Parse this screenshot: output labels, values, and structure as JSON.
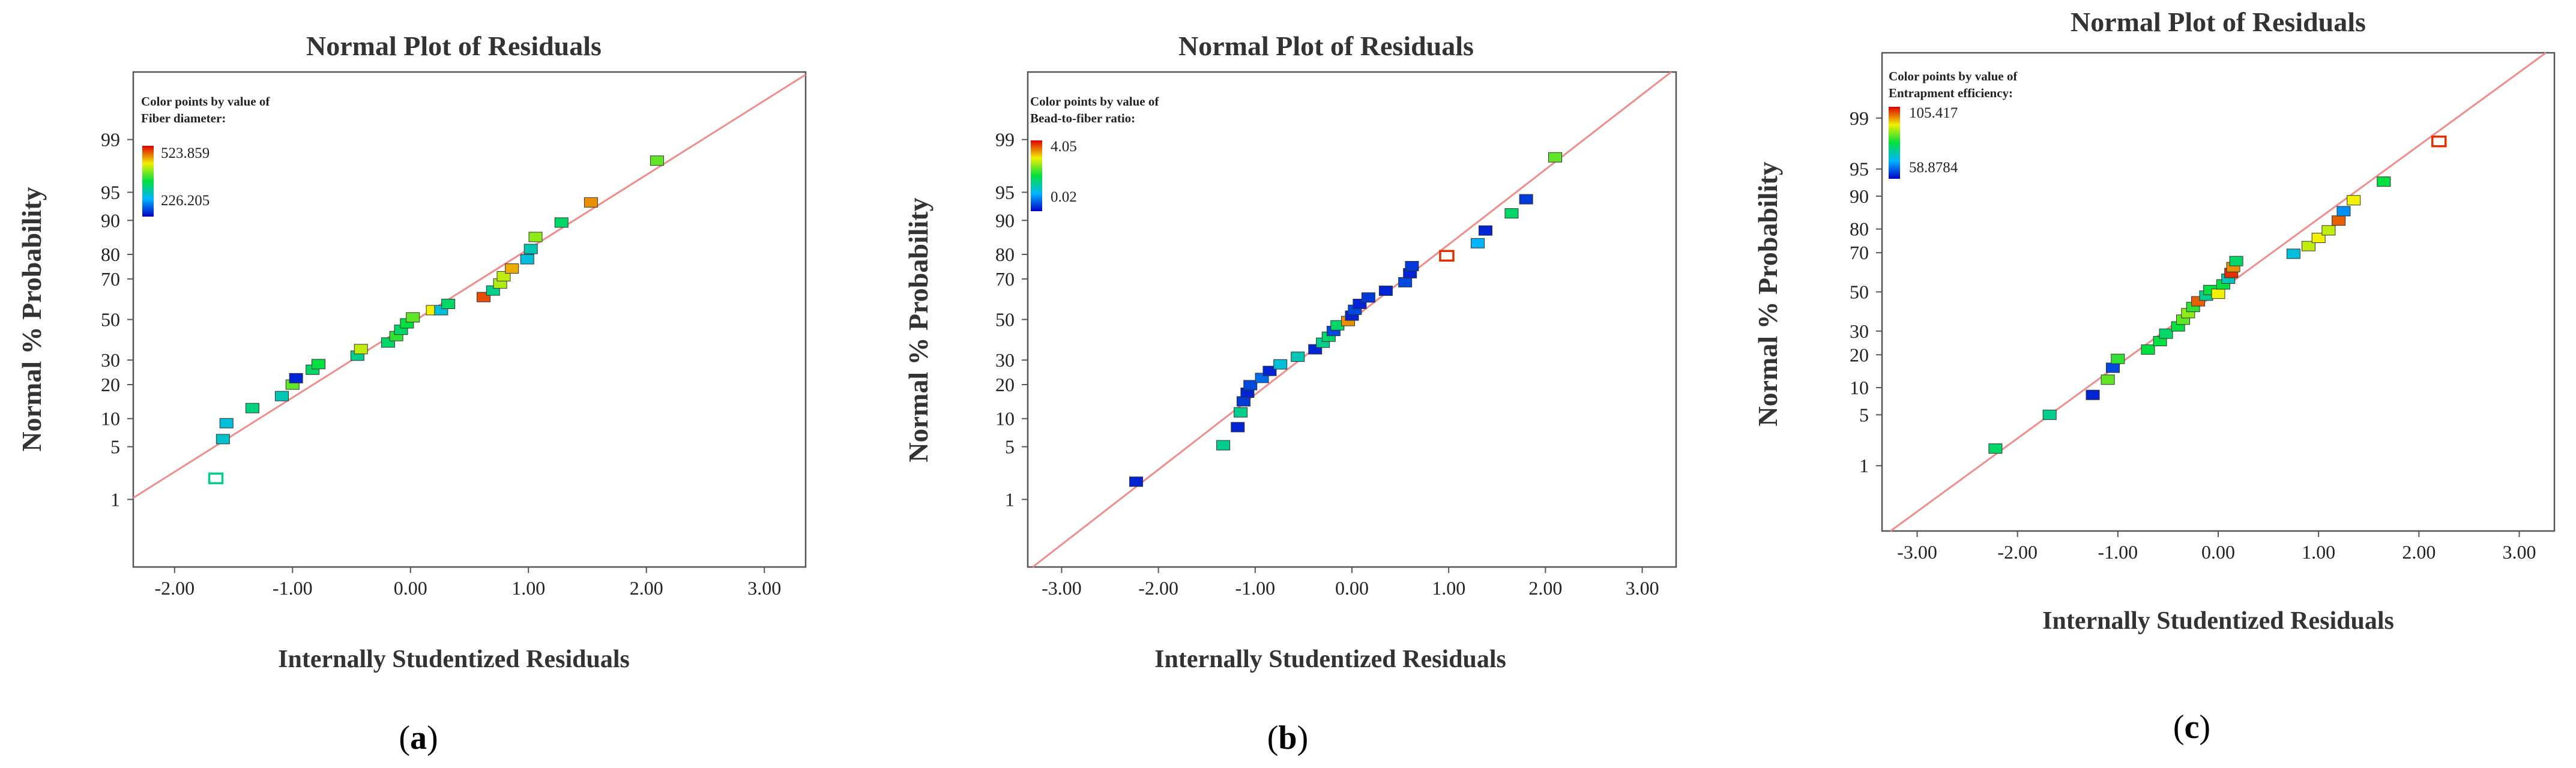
{
  "colors": {
    "fit_line": "#f08c8c",
    "frame": "#555555",
    "scale_high_text": "#aa0000",
    "scale_low_text": "#0000aa"
  },
  "chart_data": [
    {
      "id": "a",
      "type": "scatter",
      "title": "Normal Plot of Residuals",
      "xlabel": "Internally Studentized Residuals",
      "ylabel": "Normal % Probability",
      "panel_label": "a",
      "xlim": [
        -2.35,
        3.35
      ],
      "xticks": [
        "-2.00",
        "-1.00",
        "0.00",
        "1.00",
        "2.00",
        "3.00"
      ],
      "xtick_values": [
        -2,
        -1,
        0,
        1,
        2,
        3
      ],
      "ylim_z": [
        -3.2,
        3.2
      ],
      "yticks": [
        "1",
        "5",
        "10",
        "20",
        "30",
        "50",
        "70",
        "80",
        "90",
        "95",
        "99"
      ],
      "ytick_values": [
        1,
        5,
        10,
        20,
        30,
        50,
        70,
        80,
        90,
        95,
        99
      ],
      "fit_line": {
        "slope": 0.96,
        "intercept": -0.05
      },
      "legend": {
        "line1": "Color points by value of",
        "line2": "Fiber diameter:",
        "max": "523.859",
        "min": "226.205"
      },
      "points": [
        {
          "x": -1.65,
          "p": 2.0,
          "c": 0.4,
          "hollow": true
        },
        {
          "x": -1.59,
          "p": 6.1,
          "c": 0.32
        },
        {
          "x": -1.56,
          "p": 9.0,
          "c": 0.3
        },
        {
          "x": -1.34,
          "p": 12.6,
          "c": 0.42
        },
        {
          "x": -1.09,
          "p": 16.1,
          "c": 0.35
        },
        {
          "x": -1.0,
          "p": 20.0,
          "c": 0.6
        },
        {
          "x": -0.97,
          "p": 22.4,
          "c": 0.05
        },
        {
          "x": -0.83,
          "p": 25.8,
          "c": 0.45
        },
        {
          "x": -0.78,
          "p": 28.2,
          "c": 0.5
        },
        {
          "x": -0.45,
          "p": 32.0,
          "c": 0.4
        },
        {
          "x": -0.42,
          "p": 35.1,
          "c": 0.7
        },
        {
          "x": -0.19,
          "p": 38.3,
          "c": 0.45
        },
        {
          "x": -0.12,
          "p": 41.5,
          "c": 0.55
        },
        {
          "x": -0.08,
          "p": 44.7,
          "c": 0.45
        },
        {
          "x": -0.03,
          "p": 48.0,
          "c": 0.5
        },
        {
          "x": 0.02,
          "p": 51.1,
          "c": 0.6
        },
        {
          "x": 0.19,
          "p": 54.8,
          "c": 0.75
        },
        {
          "x": 0.26,
          "p": 54.8,
          "c": 0.3
        },
        {
          "x": 0.32,
          "p": 58.0,
          "c": 0.45
        },
        {
          "x": 0.62,
          "p": 61.4,
          "c": 0.92
        },
        {
          "x": 0.7,
          "p": 64.6,
          "c": 0.4
        },
        {
          "x": 0.76,
          "p": 67.9,
          "c": 0.68
        },
        {
          "x": 0.79,
          "p": 71.2,
          "c": 0.7
        },
        {
          "x": 0.86,
          "p": 74.5,
          "c": 0.82
        },
        {
          "x": 0.99,
          "p": 78.2,
          "c": 0.3
        },
        {
          "x": 1.02,
          "p": 81.9,
          "c": 0.35
        },
        {
          "x": 1.06,
          "p": 85.7,
          "c": 0.65
        },
        {
          "x": 1.28,
          "p": 89.5,
          "c": 0.45
        },
        {
          "x": 1.53,
          "p": 93.5,
          "c": 0.85
        },
        {
          "x": 2.09,
          "p": 98.0,
          "c": 0.6
        }
      ]
    },
    {
      "id": "b",
      "type": "scatter",
      "title": "Normal Plot of Residuals",
      "xlabel": "Internally Studentized Residuals",
      "ylabel": "Normal % Probability",
      "panel_label": "b",
      "xlim": [
        -3.35,
        3.35
      ],
      "xticks": [
        "-3.00",
        "-2.00",
        "-1.00",
        "0.00",
        "1.00",
        "2.00",
        "3.00"
      ],
      "xtick_values": [
        -3,
        -2,
        -1,
        0,
        1,
        2,
        3
      ],
      "ylim_z": [
        -3.2,
        3.2
      ],
      "yticks": [
        "1",
        "5",
        "10",
        "20",
        "30",
        "50",
        "70",
        "80",
        "90",
        "95",
        "99"
      ],
      "ytick_values": [
        1,
        5,
        10,
        20,
        30,
        50,
        70,
        80,
        90,
        95,
        99
      ],
      "fit_line": {
        "slope": 0.97,
        "intercept": 0.0
      },
      "legend": {
        "line1": "Color points by value of",
        "line2": "Bead-to-fiber ratio:",
        "max": "4.05",
        "min": "0.02"
      },
      "points": [
        {
          "x": -2.23,
          "p": 1.8,
          "c": 0.05
        },
        {
          "x": -1.33,
          "p": 5.2,
          "c": 0.4
        },
        {
          "x": -1.18,
          "p": 8.2,
          "c": 0.05
        },
        {
          "x": -1.15,
          "p": 11.5,
          "c": 0.4
        },
        {
          "x": -1.12,
          "p": 14.5,
          "c": 0.08
        },
        {
          "x": -1.08,
          "p": 17.2,
          "c": 0.05
        },
        {
          "x": -1.05,
          "p": 19.8,
          "c": 0.1
        },
        {
          "x": -0.93,
          "p": 22.5,
          "c": 0.15
        },
        {
          "x": -0.85,
          "p": 25.3,
          "c": 0.05
        },
        {
          "x": -0.74,
          "p": 28.1,
          "c": 0.3
        },
        {
          "x": -0.56,
          "p": 31.5,
          "c": 0.35
        },
        {
          "x": -0.38,
          "p": 35.0,
          "c": 0.05
        },
        {
          "x": -0.3,
          "p": 38.2,
          "c": 0.4
        },
        {
          "x": -0.24,
          "p": 41.2,
          "c": 0.45
        },
        {
          "x": -0.19,
          "p": 44.1,
          "c": 0.1
        },
        {
          "x": -0.15,
          "p": 47.0,
          "c": 0.45
        },
        {
          "x": -0.04,
          "p": 49.2,
          "c": 0.85
        },
        {
          "x": 0.0,
          "p": 52.0,
          "c": 0.05
        },
        {
          "x": 0.03,
          "p": 55.0,
          "c": 0.1
        },
        {
          "x": 0.08,
          "p": 58.0,
          "c": 0.05
        },
        {
          "x": 0.17,
          "p": 61.2,
          "c": 0.08
        },
        {
          "x": 0.35,
          "p": 64.5,
          "c": 0.05
        },
        {
          "x": 0.55,
          "p": 68.5,
          "c": 0.1
        },
        {
          "x": 0.6,
          "p": 72.5,
          "c": 0.05
        },
        {
          "x": 0.62,
          "p": 75.5,
          "c": 0.08
        },
        {
          "x": 0.98,
          "p": 79.5,
          "c": 0.95,
          "hollow": true
        },
        {
          "x": 1.3,
          "p": 83.8,
          "c": 0.25
        },
        {
          "x": 1.38,
          "p": 87.5,
          "c": 0.05
        },
        {
          "x": 1.65,
          "p": 91.5,
          "c": 0.45
        },
        {
          "x": 1.8,
          "p": 94.0,
          "c": 0.08
        },
        {
          "x": 2.1,
          "p": 98.2,
          "c": 0.6
        }
      ]
    },
    {
      "id": "c",
      "type": "scatter",
      "title": "Normal Plot of Residuals",
      "xlabel": "Internally Studentized Residuals",
      "ylabel": "Normal % Probability",
      "panel_label": "c",
      "xlim": [
        -3.35,
        3.35
      ],
      "xticks": [
        "-3.00",
        "-2.00",
        "-1.00",
        "0.00",
        "1.00",
        "2.00",
        "3.00"
      ],
      "xtick_values": [
        -3,
        -2,
        -1,
        0,
        1,
        2,
        3
      ],
      "ylim_z": [
        -3.2,
        3.2
      ],
      "yticks": [
        "1",
        "5",
        "10",
        "20",
        "30",
        "50",
        "70",
        "80",
        "90",
        "95",
        "99"
      ],
      "ytick_values": [
        1,
        5,
        10,
        20,
        30,
        50,
        70,
        80,
        90,
        95,
        99
      ],
      "fit_line": {
        "slope": 0.98,
        "intercept": 0.0
      },
      "legend": {
        "line1": "Color points by value of",
        "line2": "Entrapment efficiency:",
        "max": "105.417",
        "min": "58.8784"
      },
      "points": [
        {
          "x": -2.22,
          "p": 1.8,
          "c": 0.45
        },
        {
          "x": -1.68,
          "p": 5.0,
          "c": 0.4
        },
        {
          "x": -1.25,
          "p": 8.4,
          "c": 0.05
        },
        {
          "x": -1.1,
          "p": 12.0,
          "c": 0.6
        },
        {
          "x": -1.05,
          "p": 15.5,
          "c": 0.1
        },
        {
          "x": -1.0,
          "p": 18.5,
          "c": 0.55
        },
        {
          "x": -0.7,
          "p": 22.0,
          "c": 0.5
        },
        {
          "x": -0.58,
          "p": 25.5,
          "c": 0.5
        },
        {
          "x": -0.52,
          "p": 28.8,
          "c": 0.45
        },
        {
          "x": -0.4,
          "p": 32.2,
          "c": 0.5
        },
        {
          "x": -0.35,
          "p": 35.5,
          "c": 0.6
        },
        {
          "x": -0.3,
          "p": 38.8,
          "c": 0.65
        },
        {
          "x": -0.25,
          "p": 42.0,
          "c": 0.55
        },
        {
          "x": -0.2,
          "p": 45.0,
          "c": 0.9
        },
        {
          "x": -0.12,
          "p": 48.0,
          "c": 0.4
        },
        {
          "x": -0.08,
          "p": 51.0,
          "c": 0.5
        },
        {
          "x": 0.0,
          "p": 49.0,
          "c": 0.75
        },
        {
          "x": 0.05,
          "p": 54.0,
          "c": 0.5
        },
        {
          "x": 0.1,
          "p": 57.0,
          "c": 0.35
        },
        {
          "x": 0.13,
          "p": 60.0,
          "c": 0.95
        },
        {
          "x": 0.15,
          "p": 63.0,
          "c": 0.85
        },
        {
          "x": 0.18,
          "p": 66.0,
          "c": 0.45
        },
        {
          "x": 0.75,
          "p": 69.5,
          "c": 0.3
        },
        {
          "x": 0.9,
          "p": 73.0,
          "c": 0.7
        },
        {
          "x": 1.0,
          "p": 76.5,
          "c": 0.75
        },
        {
          "x": 1.1,
          "p": 79.5,
          "c": 0.7
        },
        {
          "x": 1.2,
          "p": 83.0,
          "c": 0.9
        },
        {
          "x": 1.25,
          "p": 86.0,
          "c": 0.2
        },
        {
          "x": 1.35,
          "p": 89.0,
          "c": 0.75
        },
        {
          "x": 1.65,
          "p": 93.0,
          "c": 0.5
        },
        {
          "x": 2.2,
          "p": 97.8,
          "c": 0.95,
          "hollow": true
        }
      ]
    }
  ]
}
